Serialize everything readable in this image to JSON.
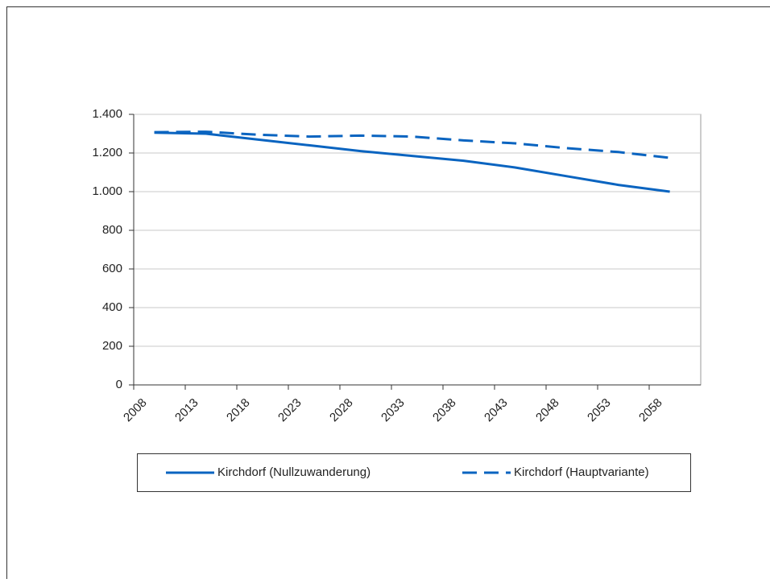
{
  "chart_data": {
    "type": "line",
    "x": [
      2010,
      2015,
      2020,
      2025,
      2030,
      2035,
      2040,
      2045,
      2050,
      2055,
      2060
    ],
    "series": [
      {
        "name": "Kirchdorf (Nullzuwanderung)",
        "color": "#0a64c0",
        "dash": false,
        "values": [
          1305,
          1300,
          1270,
          1240,
          1210,
          1185,
          1160,
          1125,
          1080,
          1035,
          1000
        ]
      },
      {
        "name": "Kirchdorf (Hauptvariante)",
        "color": "#0a64c0",
        "dash": true,
        "values": [
          1308,
          1310,
          1295,
          1285,
          1290,
          1285,
          1265,
          1250,
          1225,
          1205,
          1175
        ]
      }
    ],
    "xlim": [
      2008,
      2063
    ],
    "xticks": [
      2008,
      2013,
      2018,
      2023,
      2028,
      2033,
      2038,
      2043,
      2048,
      2053,
      2058
    ],
    "ylim": [
      0,
      1400
    ],
    "yticks": [
      0,
      200,
      400,
      600,
      800,
      {
        "value": 1000,
        "label": "1.000"
      },
      {
        "value": 1200,
        "label": "1.200"
      },
      {
        "value": 1400,
        "label": "1.400"
      }
    ],
    "grid": true,
    "legend": "bottom"
  }
}
